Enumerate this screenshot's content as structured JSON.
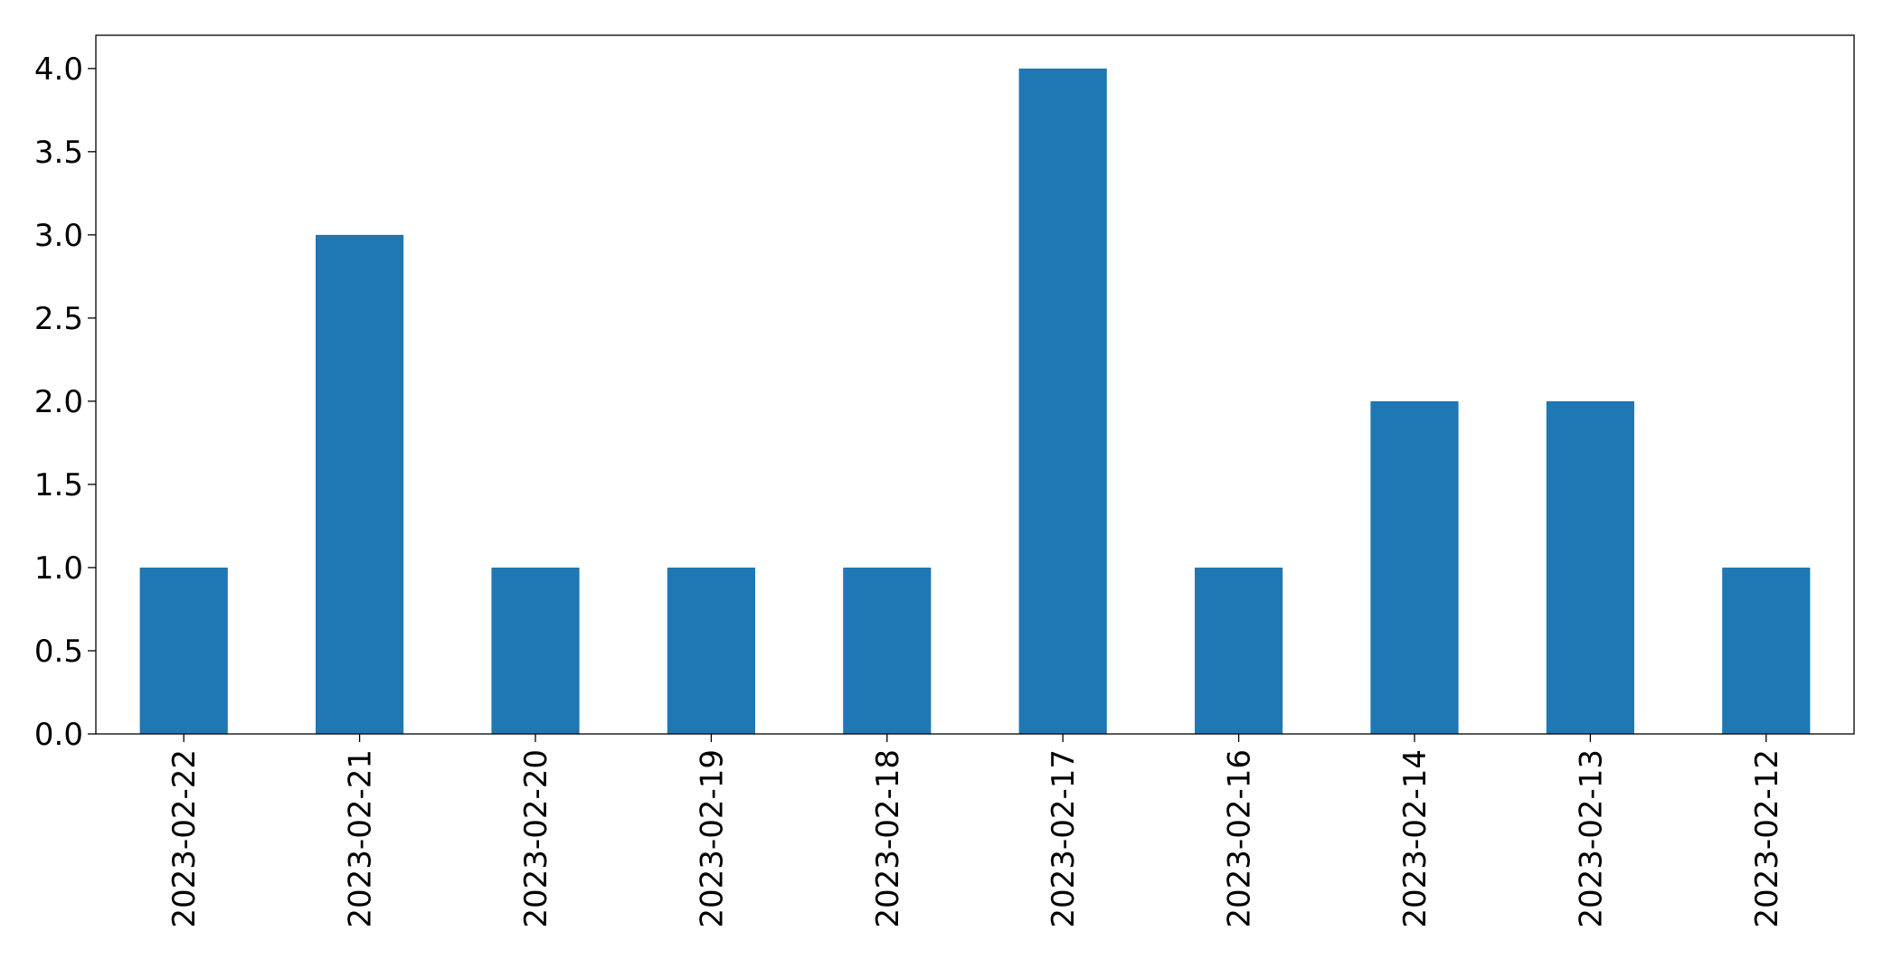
{
  "chart_data": {
    "type": "bar",
    "title": "",
    "xlabel": "",
    "ylabel": "",
    "categories": [
      "2023-02-22",
      "2023-02-21",
      "2023-02-20",
      "2023-02-19",
      "2023-02-18",
      "2023-02-17",
      "2023-02-16",
      "2023-02-14",
      "2023-02-13",
      "2023-02-12"
    ],
    "values": [
      1,
      3,
      1,
      1,
      1,
      4,
      1,
      2,
      2,
      1
    ],
    "ylim": [
      0,
      4.2
    ],
    "yticks": [
      "0.0",
      "0.5",
      "1.0",
      "1.5",
      "2.0",
      "2.5",
      "3.0",
      "3.5",
      "4.0"
    ],
    "bar_color": "#1f77b4",
    "grid": false,
    "legend": false
  }
}
